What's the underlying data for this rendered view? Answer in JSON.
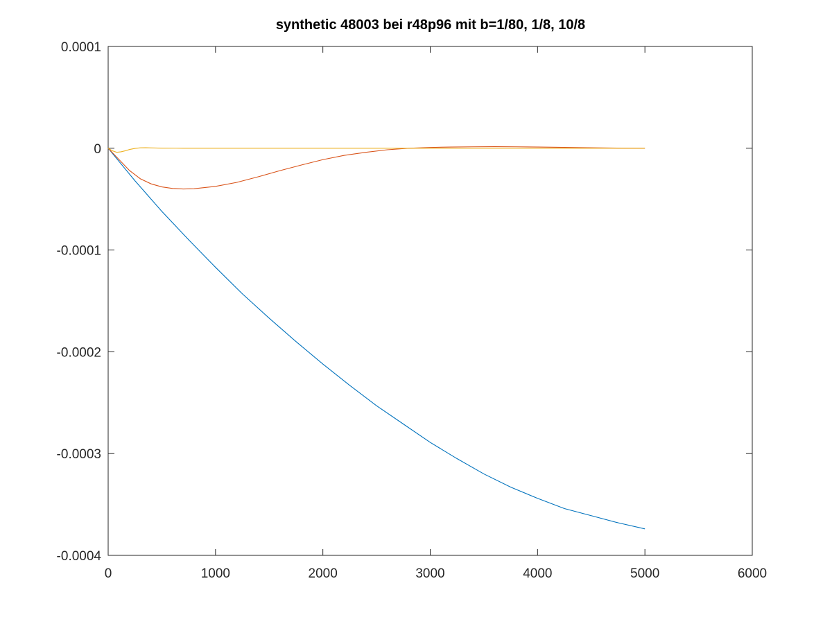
{
  "chart_data": {
    "type": "line",
    "title": "synthetic 48003 bei r48p96 mit b=1/80, 1/8, 10/8",
    "xlabel": "",
    "ylabel": "",
    "xlim": [
      0,
      6000
    ],
    "ylim": [
      -0.0004,
      0.0001
    ],
    "x_ticks": [
      {
        "value": 0,
        "label": "0"
      },
      {
        "value": 1000,
        "label": "1000"
      },
      {
        "value": 2000,
        "label": "2000"
      },
      {
        "value": 3000,
        "label": "3000"
      },
      {
        "value": 4000,
        "label": "4000"
      },
      {
        "value": 5000,
        "label": "5000"
      },
      {
        "value": 6000,
        "label": "6000"
      }
    ],
    "y_ticks": [
      {
        "value": 0.0001,
        "label": "0.0001"
      },
      {
        "value": 0,
        "label": "0"
      },
      {
        "value": -0.0001,
        "label": "-0.0001"
      },
      {
        "value": -0.0002,
        "label": "-0.0002"
      },
      {
        "value": -0.0003,
        "label": "-0.0003"
      },
      {
        "value": -0.0004,
        "label": "-0.0004"
      }
    ],
    "grid": false,
    "legend": "none",
    "series": [
      {
        "color": "#0072bd",
        "x": [
          0,
          250,
          500,
          750,
          1000,
          1250,
          1500,
          1750,
          2000,
          2250,
          2500,
          2750,
          3000,
          3250,
          3500,
          3750,
          4000,
          4250,
          4500,
          4750,
          5000
        ],
        "y": [
          0,
          -3.2e-05,
          -6.2e-05,
          -9e-05,
          -0.000117,
          -0.000143,
          -0.000167,
          -0.00019,
          -0.000212,
          -0.000233,
          -0.000253,
          -0.000271,
          -0.000289,
          -0.000305,
          -0.00032,
          -0.000333,
          -0.000344,
          -0.000354,
          -0.000361,
          -0.000368,
          -0.000374
        ]
      },
      {
        "color": "#d95319",
        "x": [
          0,
          100,
          200,
          300,
          400,
          500,
          600,
          700,
          800,
          1000,
          1200,
          1400,
          1600,
          1800,
          2000,
          2200,
          2400,
          2600,
          2800,
          3000,
          3200,
          3400,
          3600,
          3800,
          4000,
          4200,
          4400,
          4600,
          4800,
          5000
        ],
        "y": [
          0,
          -1.1e-05,
          -2.2e-05,
          -3e-05,
          -3.5e-05,
          -3.8e-05,
          -3.95e-05,
          -4e-05,
          -3.98e-05,
          -3.75e-05,
          -3.35e-05,
          -2.8e-05,
          -2.2e-05,
          -1.65e-05,
          -1.12e-05,
          -7e-06,
          -4e-06,
          -1.5e-06,
          0,
          8e-07,
          1.2e-06,
          1.4e-06,
          1.5e-06,
          1.4e-06,
          1.2e-06,
          9e-07,
          6e-07,
          3e-07,
          1e-07,
          0
        ]
      },
      {
        "color": "#edb120",
        "x": [
          0,
          40,
          80,
          120,
          160,
          200,
          250,
          300,
          350,
          400,
          500,
          700,
          1000,
          2000,
          3000,
          4000,
          5000
        ],
        "y": [
          0,
          -2.5e-06,
          -4e-06,
          -3.5e-06,
          -2.5e-06,
          -1.2e-06,
          -2e-07,
          4e-07,
          5e-07,
          3e-07,
          1e-07,
          0,
          0,
          0,
          0,
          0,
          0
        ]
      }
    ]
  }
}
